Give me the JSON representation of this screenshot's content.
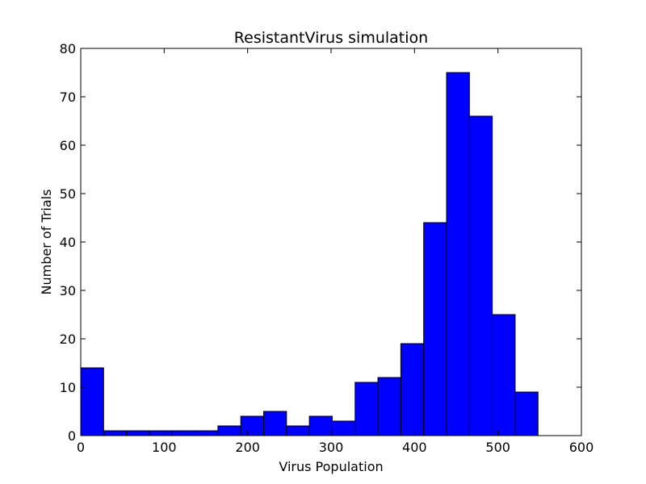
{
  "chart_data": {
    "type": "bar",
    "title": "ResistantVirus simulation",
    "xlabel": "Virus Population",
    "ylabel": "Number of Trials",
    "xlim": [
      0,
      600
    ],
    "ylim": [
      0,
      80
    ],
    "xticks": [
      0,
      100,
      200,
      300,
      400,
      500,
      600
    ],
    "yticks": [
      0,
      10,
      20,
      30,
      40,
      50,
      60,
      70,
      80
    ],
    "grid": false,
    "bar_color": "#0000ff",
    "edge_color": "#000000",
    "bins": [
      {
        "x0": 0,
        "x1": 27.4,
        "count": 14
      },
      {
        "x0": 27.4,
        "x1": 54.8,
        "count": 1
      },
      {
        "x0": 54.8,
        "x1": 82.2,
        "count": 1
      },
      {
        "x0": 82.2,
        "x1": 109.6,
        "count": 1
      },
      {
        "x0": 109.6,
        "x1": 137.0,
        "count": 1
      },
      {
        "x0": 137.0,
        "x1": 164.4,
        "count": 1
      },
      {
        "x0": 164.4,
        "x1": 191.8,
        "count": 2
      },
      {
        "x0": 191.8,
        "x1": 219.2,
        "count": 4
      },
      {
        "x0": 219.2,
        "x1": 246.6,
        "count": 5
      },
      {
        "x0": 246.6,
        "x1": 274.0,
        "count": 2
      },
      {
        "x0": 274.0,
        "x1": 301.4,
        "count": 4
      },
      {
        "x0": 301.4,
        "x1": 328.8,
        "count": 3
      },
      {
        "x0": 328.8,
        "x1": 356.2,
        "count": 11
      },
      {
        "x0": 356.2,
        "x1": 383.6,
        "count": 12
      },
      {
        "x0": 383.6,
        "x1": 411.0,
        "count": 19
      },
      {
        "x0": 411.0,
        "x1": 438.4,
        "count": 44
      },
      {
        "x0": 438.4,
        "x1": 465.8,
        "count": 75
      },
      {
        "x0": 465.8,
        "x1": 493.2,
        "count": 66
      },
      {
        "x0": 493.2,
        "x1": 520.6,
        "count": 25
      },
      {
        "x0": 520.6,
        "x1": 548.0,
        "count": 9
      }
    ]
  }
}
